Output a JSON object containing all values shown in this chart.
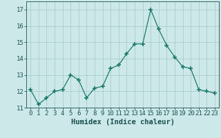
{
  "x": [
    0,
    1,
    2,
    3,
    4,
    5,
    6,
    7,
    8,
    9,
    10,
    11,
    12,
    13,
    14,
    15,
    16,
    17,
    18,
    19,
    20,
    21,
    22,
    23
  ],
  "y": [
    12.1,
    11.2,
    11.6,
    12.0,
    12.1,
    13.0,
    12.7,
    11.6,
    12.2,
    12.3,
    13.4,
    13.6,
    14.3,
    14.9,
    14.9,
    17.0,
    15.8,
    14.8,
    14.1,
    13.5,
    13.4,
    12.1,
    12.0,
    11.9
  ],
  "line_color": "#1a7a6a",
  "marker": "+",
  "marker_size": 4,
  "bg_color": "#cce8e8",
  "grid_color": "#aacccc",
  "tick_color": "#1a5050",
  "xlabel": "Humidex (Indice chaleur)",
  "ylim": [
    11,
    17.5
  ],
  "xlim": [
    -0.5,
    23.5
  ],
  "yticks": [
    11,
    12,
    13,
    14,
    15,
    16,
    17
  ],
  "xticks": [
    0,
    1,
    2,
    3,
    4,
    5,
    6,
    7,
    8,
    9,
    10,
    11,
    12,
    13,
    14,
    15,
    16,
    17,
    18,
    19,
    20,
    21,
    22,
    23
  ],
  "font_color": "#1a5050",
  "xlabel_fontsize": 7.5,
  "tick_fontsize": 6.5
}
